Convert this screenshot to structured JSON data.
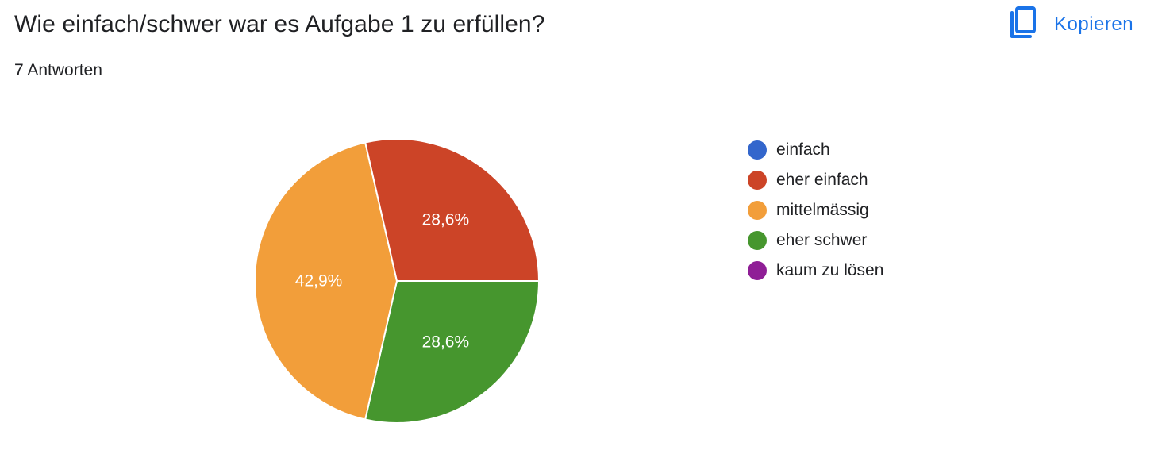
{
  "header": {
    "title": "Wie einfach/schwer war es Aufgabe 1 zu erfüllen?",
    "response_count": "7 Antworten",
    "copy_label": "Kopieren"
  },
  "colors": {
    "accent": "#1a73e8"
  },
  "icons": {
    "copy": "copy-icon"
  },
  "chart_data": {
    "type": "pie",
    "categories": [
      "einfach",
      "eher einfach",
      "mittelmässig",
      "eher schwer",
      "kaum zu lösen"
    ],
    "values": [
      0,
      28.6,
      42.9,
      28.6,
      0
    ],
    "labels": [
      "",
      "28,6%",
      "42,9%",
      "28,6%",
      ""
    ],
    "colors": [
      "#3366cc",
      "#cc4427",
      "#f29e3a",
      "#46962e",
      "#8f1e96"
    ],
    "title": "",
    "legend_position": "right"
  }
}
